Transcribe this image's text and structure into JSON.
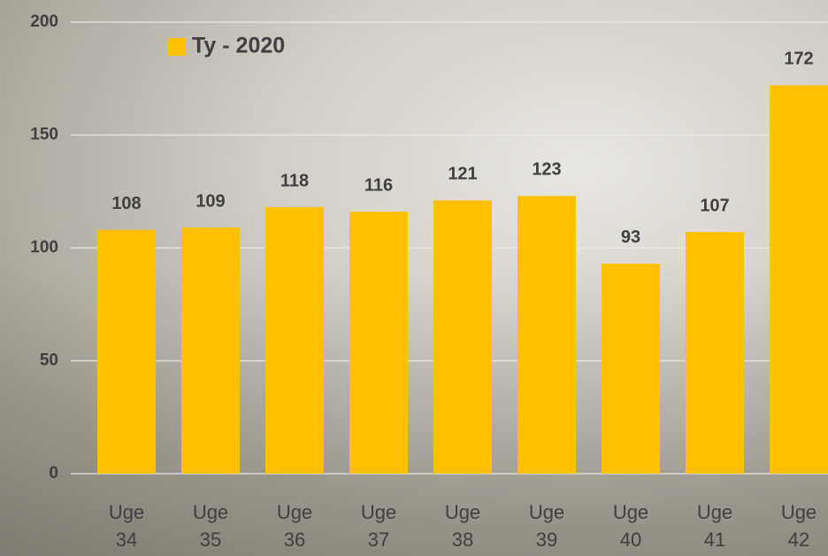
{
  "chart_data": {
    "type": "bar",
    "categories": [
      "Uge 34",
      "Uge 35",
      "Uge 36",
      "Uge 37",
      "Uge 38",
      "Uge 39",
      "Uge 40",
      "Uge 41",
      "Uge 42"
    ],
    "series": [
      {
        "name": "Ty - 2020",
        "color": "#FFC000",
        "values": [
          108,
          109,
          118,
          116,
          121,
          123,
          93,
          107,
          172
        ]
      }
    ],
    "ylim": [
      0,
      200
    ],
    "yticks": [
      0,
      50,
      100,
      150,
      200
    ],
    "grid": true,
    "legend": "top-left"
  }
}
